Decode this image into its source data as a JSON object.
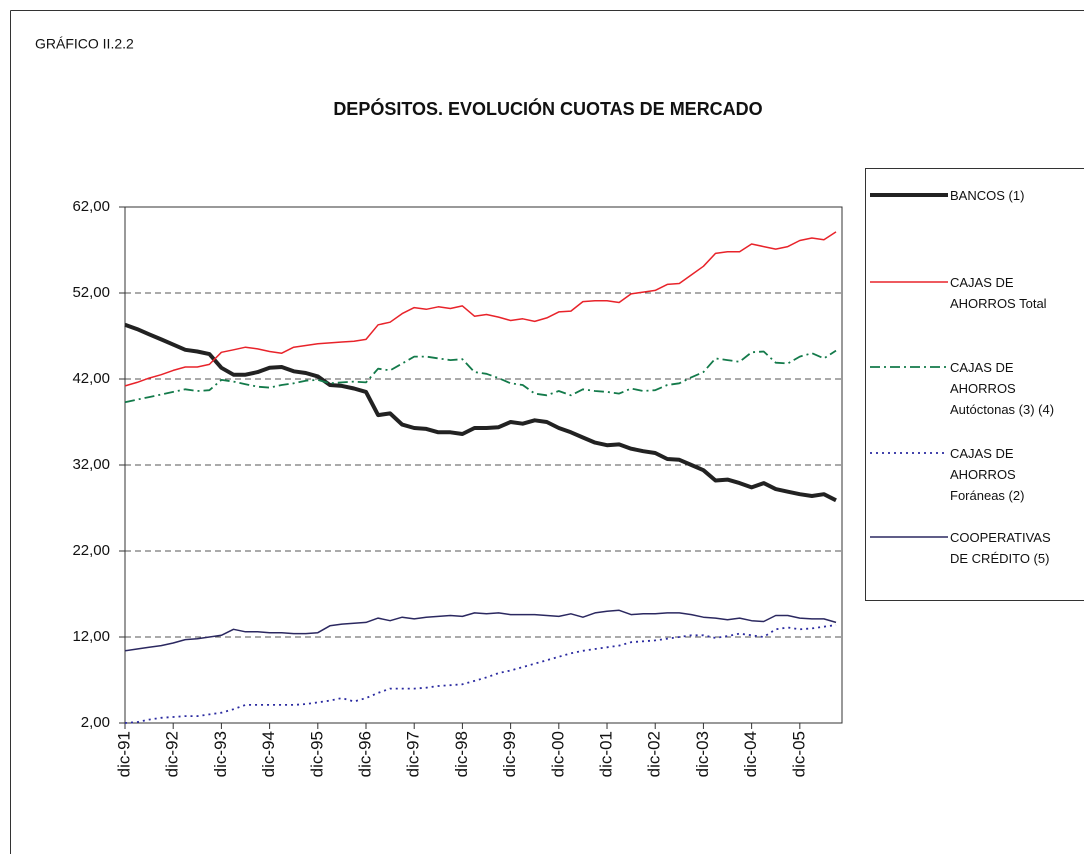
{
  "chart_data": {
    "type": "line",
    "label": "GRÁFICO II.2.2",
    "title": "DEPÓSITOS. EVOLUCIÓN CUOTAS DE MERCADO",
    "categories": [
      "dic-91",
      null,
      null,
      null,
      "dic-92",
      null,
      null,
      null,
      "dic-93",
      null,
      null,
      null,
      "dic-94",
      null,
      null,
      null,
      "dic-95",
      null,
      null,
      null,
      "dic-96",
      null,
      null,
      null,
      "dic-97",
      null,
      null,
      null,
      "dic-98",
      null,
      null,
      null,
      "dic-99",
      null,
      null,
      null,
      "dic-00",
      null,
      null,
      null,
      "dic-01",
      null,
      null,
      null,
      "dic-02",
      null,
      null,
      null,
      "dic-03",
      null,
      null,
      null,
      "dic-04",
      null,
      null,
      null,
      "dic-05",
      null,
      null,
      null
    ],
    "ylim": [
      2,
      62
    ],
    "yticks": [
      {
        "value": 2,
        "label": "2,00"
      },
      {
        "value": 12,
        "label": "12,00"
      },
      {
        "value": 22,
        "label": "22,00"
      },
      {
        "value": 32,
        "label": "32,00"
      },
      {
        "value": 42,
        "label": "42,00"
      },
      {
        "value": 52,
        "label": "52,00"
      },
      {
        "value": 62,
        "label": "62,00"
      }
    ],
    "grid": true,
    "legend": "right",
    "series": [
      {
        "name": "BANCOS (1)",
        "color": "#222222",
        "linewidth": 4,
        "dash": "none",
        "values": [
          48.3,
          47.8,
          47.2,
          46.6,
          46.0,
          45.4,
          45.2,
          44.9,
          43.3,
          42.5,
          42.5,
          42.8,
          43.3,
          43.4,
          42.9,
          42.7,
          42.3,
          41.3,
          41.2,
          40.9,
          40.5,
          37.8,
          38.0,
          36.7,
          36.3,
          36.2,
          35.8,
          35.8,
          35.6,
          36.3,
          36.3,
          36.4,
          37.0,
          36.8,
          37.2,
          37.0,
          36.3,
          35.8,
          35.2,
          34.6,
          34.3,
          34.4,
          33.9,
          33.6,
          33.4,
          32.7,
          32.6,
          32.0,
          31.4,
          30.2,
          30.3,
          29.9,
          29.4,
          29.9,
          29.2,
          28.9,
          28.6,
          28.4,
          28.6,
          27.9
        ]
      },
      {
        "name": "CAJAS DE AHORROS Total",
        "color": "#e8232a",
        "linewidth": 1.5,
        "dash": "none",
        "values": [
          41.2,
          41.6,
          42.1,
          42.5,
          43.0,
          43.4,
          43.4,
          43.7,
          45.1,
          45.4,
          45.7,
          45.5,
          45.2,
          45.0,
          45.7,
          45.9,
          46.1,
          46.2,
          46.3,
          46.4,
          46.6,
          48.3,
          48.6,
          49.6,
          50.3,
          50.1,
          50.4,
          50.2,
          50.5,
          49.3,
          49.5,
          49.2,
          48.8,
          49.0,
          48.7,
          49.1,
          49.8,
          49.9,
          51.0,
          51.1,
          51.1,
          50.9,
          51.9,
          52.1,
          52.3,
          53.0,
          53.1,
          54.1,
          55.1,
          56.6,
          56.8,
          56.8,
          57.7,
          57.4,
          57.1,
          57.4,
          58.1,
          58.4,
          58.2,
          59.1
        ]
      },
      {
        "name": "CAJAS DE AHORROS Autóctonas (3) (4)",
        "color": "#137a4a",
        "linewidth": 1.8,
        "dash": "10,4,2,4",
        "values": [
          39.3,
          39.6,
          39.9,
          40.2,
          40.5,
          40.8,
          40.6,
          40.7,
          41.9,
          41.7,
          41.4,
          41.1,
          41.0,
          41.3,
          41.5,
          41.8,
          41.9,
          41.5,
          41.6,
          41.7,
          41.6,
          43.2,
          43.0,
          43.8,
          44.6,
          44.6,
          44.4,
          44.2,
          44.3,
          42.8,
          42.6,
          42.1,
          41.5,
          41.3,
          40.3,
          40.1,
          40.6,
          40.1,
          40.8,
          40.6,
          40.5,
          40.3,
          40.9,
          40.6,
          40.7,
          41.3,
          41.5,
          42.2,
          42.8,
          44.4,
          44.2,
          44.0,
          45.1,
          45.2,
          43.9,
          43.8,
          44.6,
          45.0,
          44.4,
          45.3
        ]
      },
      {
        "name": "CAJAS DE AHORROS Foráneas (2)",
        "color": "#2a2aa0",
        "linewidth": 1.8,
        "dash": "2,4",
        "values": [
          2.0,
          2.1,
          2.4,
          2.6,
          2.7,
          2.8,
          2.8,
          3.0,
          3.2,
          3.6,
          4.1,
          4.1,
          4.1,
          4.1,
          4.1,
          4.2,
          4.4,
          4.6,
          4.9,
          4.5,
          4.9,
          5.5,
          6.0,
          6.0,
          6.0,
          6.1,
          6.3,
          6.4,
          6.5,
          6.9,
          7.3,
          7.8,
          8.1,
          8.5,
          8.9,
          9.3,
          9.7,
          10.1,
          10.4,
          10.6,
          10.8,
          11.0,
          11.4,
          11.5,
          11.6,
          11.8,
          12.0,
          12.2,
          12.2,
          11.9,
          12.1,
          12.4,
          12.2,
          12.0,
          12.9,
          13.1,
          12.9,
          13.0,
          13.2,
          13.4
        ]
      },
      {
        "name": "COOPERATIVAS DE CRÉDITO (5)",
        "color": "#2b2860",
        "linewidth": 1.5,
        "dash": "none",
        "values": [
          10.4,
          10.6,
          10.8,
          11.0,
          11.3,
          11.7,
          11.8,
          12.0,
          12.2,
          12.9,
          12.6,
          12.6,
          12.5,
          12.5,
          12.4,
          12.4,
          12.5,
          13.3,
          13.5,
          13.6,
          13.7,
          14.2,
          13.9,
          14.3,
          14.1,
          14.3,
          14.4,
          14.5,
          14.4,
          14.8,
          14.7,
          14.8,
          14.6,
          14.6,
          14.6,
          14.5,
          14.4,
          14.7,
          14.3,
          14.8,
          15.0,
          15.1,
          14.6,
          14.7,
          14.7,
          14.8,
          14.8,
          14.6,
          14.3,
          14.2,
          14.0,
          14.2,
          13.9,
          13.8,
          14.5,
          14.5,
          14.2,
          14.1,
          14.1,
          13.7
        ]
      }
    ]
  }
}
